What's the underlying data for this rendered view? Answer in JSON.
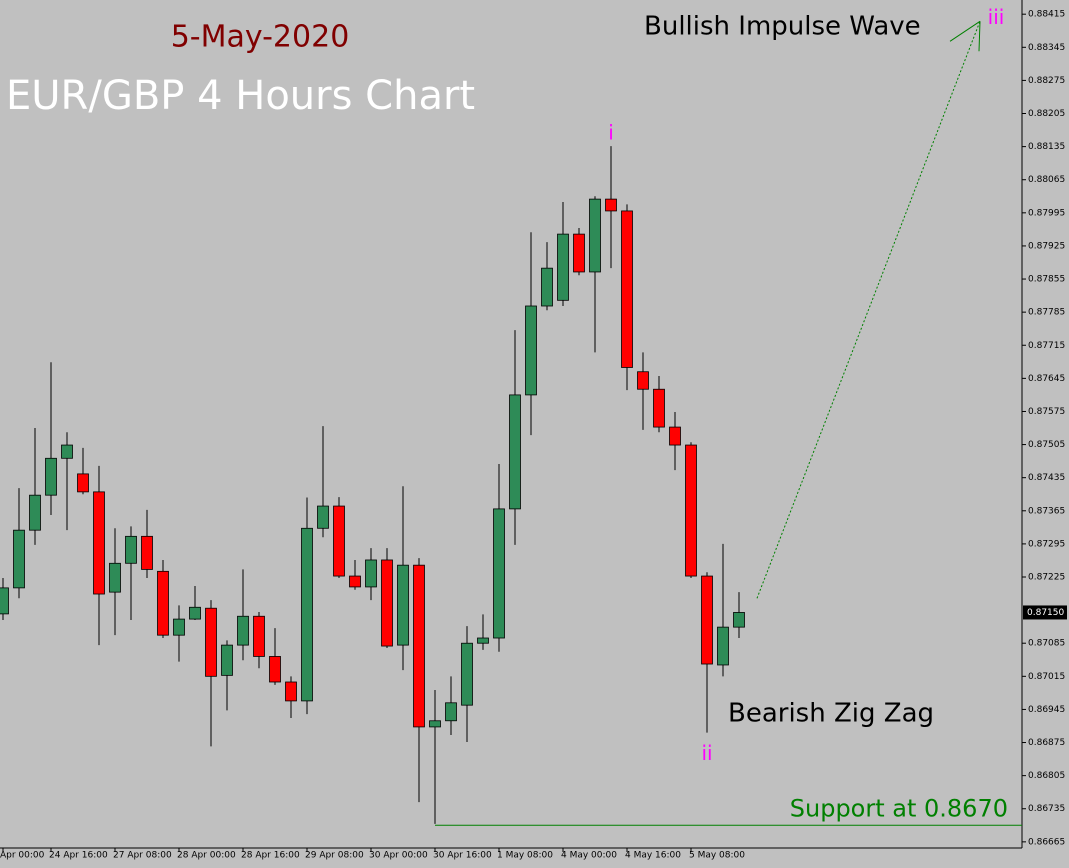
{
  "chart_data": {
    "type": "candlestick",
    "title": "EUR/GBP 4 Hours Chart",
    "subtitle": "5-May-2020",
    "categories": [
      "Apr 00:00",
      null,
      null,
      "24 Apr 16:00",
      null,
      null,
      null,
      "27 Apr 08:00",
      null,
      null,
      null,
      "28 Apr 00:00",
      null,
      null,
      null,
      "28 Apr 16:00",
      null,
      null,
      null,
      "29 Apr 08:00",
      null,
      null,
      null,
      "30 Apr 00:00",
      null,
      null,
      null,
      "30 Apr 16:00",
      null,
      null,
      null,
      "1 May 08:00",
      null,
      null,
      null,
      "4 May 00:00",
      null,
      null,
      null,
      "4 May 16:00",
      null,
      null,
      null,
      "5 May 08:00",
      null,
      null,
      null
    ],
    "open": [
      0.87147,
      0.87202,
      0.87324,
      0.87398,
      0.87476,
      0.87443,
      0.87405,
      0.87193,
      0.87254,
      0.87311,
      0.87237,
      0.87102,
      0.87136,
      0.87159,
      0.87017,
      0.87081,
      0.87142,
      0.87057,
      0.87003,
      0.86963,
      0.87328,
      0.87375,
      0.87227,
      0.87204,
      0.87261,
      0.87081,
      0.8725,
      0.86908,
      0.86921,
      0.86954,
      0.87085,
      0.87096,
      0.87369,
      0.8761,
      0.87798,
      0.8781,
      0.8795,
      0.8787,
      0.88024,
      0.87999,
      0.87659,
      0.87622,
      0.87542,
      0.87504,
      0.87227,
      0.87039,
      0.87119
    ],
    "high": [
      0.87223,
      0.87413,
      0.8754,
      0.87679,
      0.87531,
      0.87498,
      0.8746,
      0.87328,
      0.87332,
      0.87367,
      0.87261,
      0.87165,
      0.87206,
      0.87176,
      0.87091,
      0.87241,
      0.87151,
      0.87117,
      0.87015,
      0.87393,
      0.87544,
      0.87394,
      0.87261,
      0.87286,
      0.87286,
      0.87417,
      0.87265,
      0.86986,
      0.87015,
      0.87121,
      0.87146,
      0.87464,
      0.87747,
      0.87954,
      0.87933,
      0.88018,
      0.87963,
      0.8803,
      0.88136,
      0.88013,
      0.877,
      0.8765,
      0.87574,
      0.8751,
      0.87235,
      0.87295,
      0.87193
    ],
    "low": [
      0.87134,
      0.8718,
      0.87293,
      0.87356,
      0.87324,
      0.874,
      0.87081,
      0.87102,
      0.87134,
      0.87223,
      0.87096,
      0.87046,
      0.87134,
      0.86867,
      0.86943,
      0.87049,
      0.87032,
      0.86997,
      0.86927,
      0.86935,
      0.87309,
      0.87223,
      0.87198,
      0.87176,
      0.87075,
      0.87028,
      0.86749,
      0.86703,
      0.86891,
      0.86876,
      0.87071,
      0.87067,
      0.87293,
      0.87525,
      0.87789,
      0.87798,
      0.87863,
      0.877,
      0.87878,
      0.8762,
      0.87536,
      0.87531,
      0.87451,
      0.87223,
      0.86896,
      0.87015,
      0.87096
    ],
    "close": [
      0.87202,
      0.87324,
      0.87398,
      0.87476,
      0.87504,
      0.87405,
      0.87189,
      0.87254,
      0.87311,
      0.87241,
      0.87102,
      0.87136,
      0.87161,
      0.87015,
      0.87081,
      0.87142,
      0.87057,
      0.87003,
      0.86963,
      0.87328,
      0.87375,
      0.87227,
      0.87204,
      0.87261,
      0.87079,
      0.8725,
      0.86908,
      0.86921,
      0.86959,
      0.87085,
      0.87096,
      0.87369,
      0.8761,
      0.87798,
      0.87878,
      0.8795,
      0.8787,
      0.88024,
      0.87999,
      0.87668,
      0.87622,
      0.87542,
      0.87504,
      0.87227,
      0.87041,
      0.87119,
      0.8715
    ],
    "up_color": "#2e8b57",
    "down_color": "#ff0000",
    "ylim": [
      0.86652,
      0.88445
    ],
    "yticks": [
      0.88415,
      0.88345,
      0.88275,
      0.88205,
      0.88135,
      0.88065,
      0.87995,
      0.87925,
      0.87855,
      0.87785,
      0.87715,
      0.87645,
      0.87575,
      0.87505,
      0.87435,
      0.87365,
      0.87295,
      0.87225,
      0.87085,
      0.87015,
      0.86945,
      0.86875,
      0.86805,
      0.86735,
      0.86665
    ],
    "current_price": 0.8715,
    "current_price_label": "0.87150",
    "support": {
      "label": "Support at 0.8670",
      "value": 0.867,
      "color": "#008000"
    },
    "annotations": [
      "Bullish Impulse Wave",
      "Bearish Zig Zag"
    ],
    "waves": [
      "i",
      "ii",
      "iii"
    ],
    "wave_color": "#ff00ff",
    "projection": [
      0.8718,
      0.884
    ]
  }
}
